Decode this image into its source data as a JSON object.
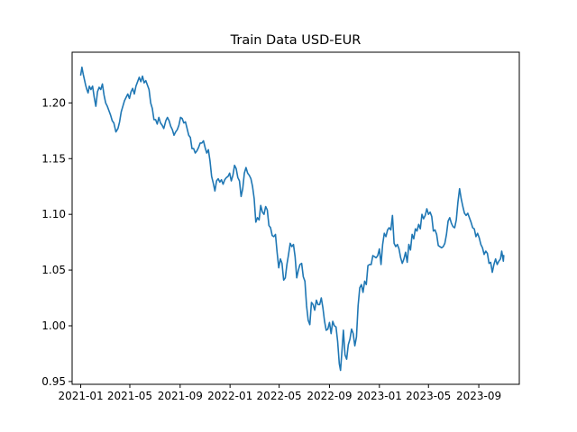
{
  "chart_data": {
    "type": "line",
    "title": "Train Data USD-EUR",
    "xlabel": "",
    "ylabel": "",
    "xlim": [
      "2020-12-11",
      "2023-12-09"
    ],
    "ylim": [
      0.9475,
      1.2455
    ],
    "grid": false,
    "legend": "none",
    "x_ticks": [
      "2021-01",
      "2021-05",
      "2021-09",
      "2022-01",
      "2022-05",
      "2022-09",
      "2023-01",
      "2023-05",
      "2023-09"
    ],
    "y_ticks": [
      "0.95",
      "1.00",
      "1.05",
      "1.10",
      "1.15",
      "1.20"
    ],
    "series": [
      {
        "name": "",
        "color": "#1f77b4",
        "points": [
          [
            "2021-01-01",
            1.225
          ],
          [
            "2021-01-04",
            1.232
          ],
          [
            "2021-01-07",
            1.226
          ],
          [
            "2021-01-10",
            1.221
          ],
          [
            "2021-01-13",
            1.216
          ],
          [
            "2021-01-16",
            1.212
          ],
          [
            "2021-01-19",
            1.209
          ],
          [
            "2021-01-22",
            1.215
          ],
          [
            "2021-01-26",
            1.212
          ],
          [
            "2021-01-30",
            1.215
          ],
          [
            "2021-02-03",
            1.205
          ],
          [
            "2021-02-07",
            1.197
          ],
          [
            "2021-02-11",
            1.21
          ],
          [
            "2021-02-15",
            1.214
          ],
          [
            "2021-02-19",
            1.212
          ],
          [
            "2021-02-23",
            1.217
          ],
          [
            "2021-02-27",
            1.207
          ],
          [
            "2021-03-03",
            1.2
          ],
          [
            "2021-03-07",
            1.197
          ],
          [
            "2021-03-11",
            1.193
          ],
          [
            "2021-03-15",
            1.189
          ],
          [
            "2021-03-19",
            1.184
          ],
          [
            "2021-03-23",
            1.182
          ],
          [
            "2021-03-28",
            1.174
          ],
          [
            "2021-04-02",
            1.177
          ],
          [
            "2021-04-06",
            1.183
          ],
          [
            "2021-04-10",
            1.192
          ],
          [
            "2021-04-14",
            1.197
          ],
          [
            "2021-04-18",
            1.202
          ],
          [
            "2021-04-22",
            1.205
          ],
          [
            "2021-04-26",
            1.208
          ],
          [
            "2021-04-30",
            1.204
          ],
          [
            "2021-05-04",
            1.21
          ],
          [
            "2021-05-08",
            1.213
          ],
          [
            "2021-05-12",
            1.208
          ],
          [
            "2021-05-16",
            1.215
          ],
          [
            "2021-05-20",
            1.219
          ],
          [
            "2021-05-24",
            1.223
          ],
          [
            "2021-05-28",
            1.219
          ],
          [
            "2021-06-01",
            1.224
          ],
          [
            "2021-06-05",
            1.218
          ],
          [
            "2021-06-09",
            1.22
          ],
          [
            "2021-06-13",
            1.216
          ],
          [
            "2021-06-17",
            1.212
          ],
          [
            "2021-06-21",
            1.2
          ],
          [
            "2021-06-25",
            1.195
          ],
          [
            "2021-06-29",
            1.185
          ],
          [
            "2021-07-03",
            1.185
          ],
          [
            "2021-07-07",
            1.181
          ],
          [
            "2021-07-11",
            1.187
          ],
          [
            "2021-07-15",
            1.182
          ],
          [
            "2021-07-19",
            1.18
          ],
          [
            "2021-07-23",
            1.177
          ],
          [
            "2021-07-28",
            1.184
          ],
          [
            "2021-08-01",
            1.187
          ],
          [
            "2021-08-05",
            1.184
          ],
          [
            "2021-08-09",
            1.179
          ],
          [
            "2021-08-13",
            1.176
          ],
          [
            "2021-08-17",
            1.171
          ],
          [
            "2021-08-21",
            1.174
          ],
          [
            "2021-08-25",
            1.176
          ],
          [
            "2021-08-29",
            1.18
          ],
          [
            "2021-09-02",
            1.187
          ],
          [
            "2021-09-06",
            1.186
          ],
          [
            "2021-09-10",
            1.182
          ],
          [
            "2021-09-14",
            1.183
          ],
          [
            "2021-09-18",
            1.177
          ],
          [
            "2021-09-22",
            1.171
          ],
          [
            "2021-09-26",
            1.169
          ],
          [
            "2021-09-30",
            1.159
          ],
          [
            "2021-10-04",
            1.159
          ],
          [
            "2021-10-08",
            1.155
          ],
          [
            "2021-10-12",
            1.157
          ],
          [
            "2021-10-16",
            1.16
          ],
          [
            "2021-10-20",
            1.164
          ],
          [
            "2021-10-24",
            1.164
          ],
          [
            "2021-10-28",
            1.166
          ],
          [
            "2021-11-01",
            1.16
          ],
          [
            "2021-11-05",
            1.155
          ],
          [
            "2021-11-09",
            1.158
          ],
          [
            "2021-11-13",
            1.148
          ],
          [
            "2021-11-17",
            1.134
          ],
          [
            "2021-11-21",
            1.128
          ],
          [
            "2021-11-25",
            1.121
          ],
          [
            "2021-11-29",
            1.13
          ],
          [
            "2021-12-03",
            1.132
          ],
          [
            "2021-12-07",
            1.129
          ],
          [
            "2021-12-11",
            1.131
          ],
          [
            "2021-12-15",
            1.127
          ],
          [
            "2021-12-19",
            1.131
          ],
          [
            "2021-12-23",
            1.133
          ],
          [
            "2021-12-27",
            1.134
          ],
          [
            "2021-12-31",
            1.137
          ],
          [
            "2022-01-04",
            1.13
          ],
          [
            "2022-01-08",
            1.135
          ],
          [
            "2022-01-12",
            1.144
          ],
          [
            "2022-01-16",
            1.141
          ],
          [
            "2022-01-20",
            1.133
          ],
          [
            "2022-01-24",
            1.13
          ],
          [
            "2022-01-28",
            1.116
          ],
          [
            "2022-02-01",
            1.123
          ],
          [
            "2022-02-05",
            1.137
          ],
          [
            "2022-02-09",
            1.142
          ],
          [
            "2022-02-13",
            1.137
          ],
          [
            "2022-02-17",
            1.135
          ],
          [
            "2022-02-21",
            1.132
          ],
          [
            "2022-02-25",
            1.125
          ],
          [
            "2022-03-01",
            1.114
          ],
          [
            "2022-03-05",
            1.093
          ],
          [
            "2022-03-09",
            1.097
          ],
          [
            "2022-03-13",
            1.095
          ],
          [
            "2022-03-17",
            1.108
          ],
          [
            "2022-03-21",
            1.102
          ],
          [
            "2022-03-25",
            1.1
          ],
          [
            "2022-03-29",
            1.107
          ],
          [
            "2022-04-02",
            1.104
          ],
          [
            "2022-04-06",
            1.09
          ],
          [
            "2022-04-10",
            1.088
          ],
          [
            "2022-04-14",
            1.081
          ],
          [
            "2022-04-18",
            1.08
          ],
          [
            "2022-04-22",
            1.082
          ],
          [
            "2022-04-26",
            1.066
          ],
          [
            "2022-04-30",
            1.052
          ],
          [
            "2022-05-04",
            1.06
          ],
          [
            "2022-05-08",
            1.056
          ],
          [
            "2022-05-12",
            1.041
          ],
          [
            "2022-05-16",
            1.043
          ],
          [
            "2022-05-20",
            1.055
          ],
          [
            "2022-05-24",
            1.064
          ],
          [
            "2022-05-28",
            1.074
          ],
          [
            "2022-06-01",
            1.071
          ],
          [
            "2022-06-05",
            1.073
          ],
          [
            "2022-06-09",
            1.062
          ],
          [
            "2022-06-13",
            1.043
          ],
          [
            "2022-06-17",
            1.05
          ],
          [
            "2022-06-21",
            1.055
          ],
          [
            "2022-06-25",
            1.056
          ],
          [
            "2022-06-29",
            1.044
          ],
          [
            "2022-07-03",
            1.04
          ],
          [
            "2022-07-07",
            1.018
          ],
          [
            "2022-07-11",
            1.005
          ],
          [
            "2022-07-15",
            1.001
          ],
          [
            "2022-07-19",
            1.021
          ],
          [
            "2022-07-23",
            1.019
          ],
          [
            "2022-07-27",
            1.014
          ],
          [
            "2022-07-31",
            1.023
          ],
          [
            "2022-08-04",
            1.019
          ],
          [
            "2022-08-08",
            1.019
          ],
          [
            "2022-08-12",
            1.025
          ],
          [
            "2022-08-16",
            1.016
          ],
          [
            "2022-08-20",
            1.004
          ],
          [
            "2022-08-24",
            0.996
          ],
          [
            "2022-08-28",
            0.997
          ],
          [
            "2022-09-01",
            1.003
          ],
          [
            "2022-09-05",
            0.993
          ],
          [
            "2022-09-09",
            1.004
          ],
          [
            "2022-09-13",
            1.0
          ],
          [
            "2022-09-17",
            0.999
          ],
          [
            "2022-09-21",
            0.986
          ],
          [
            "2022-09-25",
            0.966
          ],
          [
            "2022-09-28",
            0.96
          ],
          [
            "2022-10-02",
            0.98
          ],
          [
            "2022-10-05",
            0.996
          ],
          [
            "2022-10-09",
            0.974
          ],
          [
            "2022-10-13",
            0.97
          ],
          [
            "2022-10-17",
            0.983
          ],
          [
            "2022-10-21",
            0.988
          ],
          [
            "2022-10-25",
            0.997
          ],
          [
            "2022-10-29",
            0.993
          ],
          [
            "2022-11-02",
            0.982
          ],
          [
            "2022-11-06",
            0.99
          ],
          [
            "2022-11-10",
            1.018
          ],
          [
            "2022-11-14",
            1.034
          ],
          [
            "2022-11-18",
            1.037
          ],
          [
            "2022-11-22",
            1.03
          ],
          [
            "2022-11-26",
            1.04
          ],
          [
            "2022-11-30",
            1.037
          ],
          [
            "2022-12-04",
            1.054
          ],
          [
            "2022-12-08",
            1.055
          ],
          [
            "2022-12-12",
            1.055
          ],
          [
            "2022-12-16",
            1.063
          ],
          [
            "2022-12-20",
            1.062
          ],
          [
            "2022-12-24",
            1.061
          ],
          [
            "2022-12-28",
            1.063
          ],
          [
            "2023-01-01",
            1.069
          ],
          [
            "2023-01-05",
            1.055
          ],
          [
            "2023-01-09",
            1.073
          ],
          [
            "2023-01-13",
            1.083
          ],
          [
            "2023-01-17",
            1.08
          ],
          [
            "2023-01-21",
            1.086
          ],
          [
            "2023-01-25",
            1.088
          ],
          [
            "2023-01-29",
            1.086
          ],
          [
            "2023-02-02",
            1.099
          ],
          [
            "2023-02-06",
            1.074
          ],
          [
            "2023-02-10",
            1.071
          ],
          [
            "2023-02-14",
            1.073
          ],
          [
            "2023-02-18",
            1.069
          ],
          [
            "2023-02-22",
            1.061
          ],
          [
            "2023-02-26",
            1.056
          ],
          [
            "2023-03-02",
            1.06
          ],
          [
            "2023-03-06",
            1.066
          ],
          [
            "2023-03-10",
            1.057
          ],
          [
            "2023-03-14",
            1.073
          ],
          [
            "2023-03-18",
            1.068
          ],
          [
            "2023-03-22",
            1.082
          ],
          [
            "2023-03-26",
            1.078
          ],
          [
            "2023-03-30",
            1.087
          ],
          [
            "2023-04-03",
            1.085
          ],
          [
            "2023-04-07",
            1.091
          ],
          [
            "2023-04-11",
            1.087
          ],
          [
            "2023-04-15",
            1.1
          ],
          [
            "2023-04-19",
            1.096
          ],
          [
            "2023-04-23",
            1.099
          ],
          [
            "2023-04-27",
            1.105
          ],
          [
            "2023-05-01",
            1.1
          ],
          [
            "2023-05-05",
            1.102
          ],
          [
            "2023-05-09",
            1.098
          ],
          [
            "2023-05-13",
            1.085
          ],
          [
            "2023-05-17",
            1.086
          ],
          [
            "2023-05-21",
            1.082
          ],
          [
            "2023-05-25",
            1.072
          ],
          [
            "2023-05-29",
            1.071
          ],
          [
            "2023-06-02",
            1.07
          ],
          [
            "2023-06-06",
            1.071
          ],
          [
            "2023-06-10",
            1.074
          ],
          [
            "2023-06-14",
            1.082
          ],
          [
            "2023-06-18",
            1.094
          ],
          [
            "2023-06-22",
            1.097
          ],
          [
            "2023-06-26",
            1.092
          ],
          [
            "2023-06-30",
            1.089
          ],
          [
            "2023-07-04",
            1.088
          ],
          [
            "2023-07-08",
            1.095
          ],
          [
            "2023-07-12",
            1.111
          ],
          [
            "2023-07-16",
            1.123
          ],
          [
            "2023-07-20",
            1.114
          ],
          [
            "2023-07-24",
            1.107
          ],
          [
            "2023-07-28",
            1.101
          ],
          [
            "2023-08-01",
            1.099
          ],
          [
            "2023-08-05",
            1.101
          ],
          [
            "2023-08-09",
            1.097
          ],
          [
            "2023-08-13",
            1.093
          ],
          [
            "2023-08-17",
            1.088
          ],
          [
            "2023-08-21",
            1.087
          ],
          [
            "2023-08-25",
            1.08
          ],
          [
            "2023-08-29",
            1.083
          ],
          [
            "2023-09-02",
            1.079
          ],
          [
            "2023-09-06",
            1.073
          ],
          [
            "2023-09-10",
            1.07
          ],
          [
            "2023-09-14",
            1.064
          ],
          [
            "2023-09-18",
            1.067
          ],
          [
            "2023-09-22",
            1.065
          ],
          [
            "2023-09-26",
            1.056
          ],
          [
            "2023-09-30",
            1.057
          ],
          [
            "2023-10-04",
            1.048
          ],
          [
            "2023-10-08",
            1.055
          ],
          [
            "2023-10-12",
            1.06
          ],
          [
            "2023-10-16",
            1.055
          ],
          [
            "2023-10-20",
            1.058
          ],
          [
            "2023-10-24",
            1.06
          ],
          [
            "2023-10-27",
            1.067
          ],
          [
            "2023-10-31",
            1.058
          ],
          [
            "2023-11-01",
            1.063
          ]
        ]
      }
    ]
  }
}
